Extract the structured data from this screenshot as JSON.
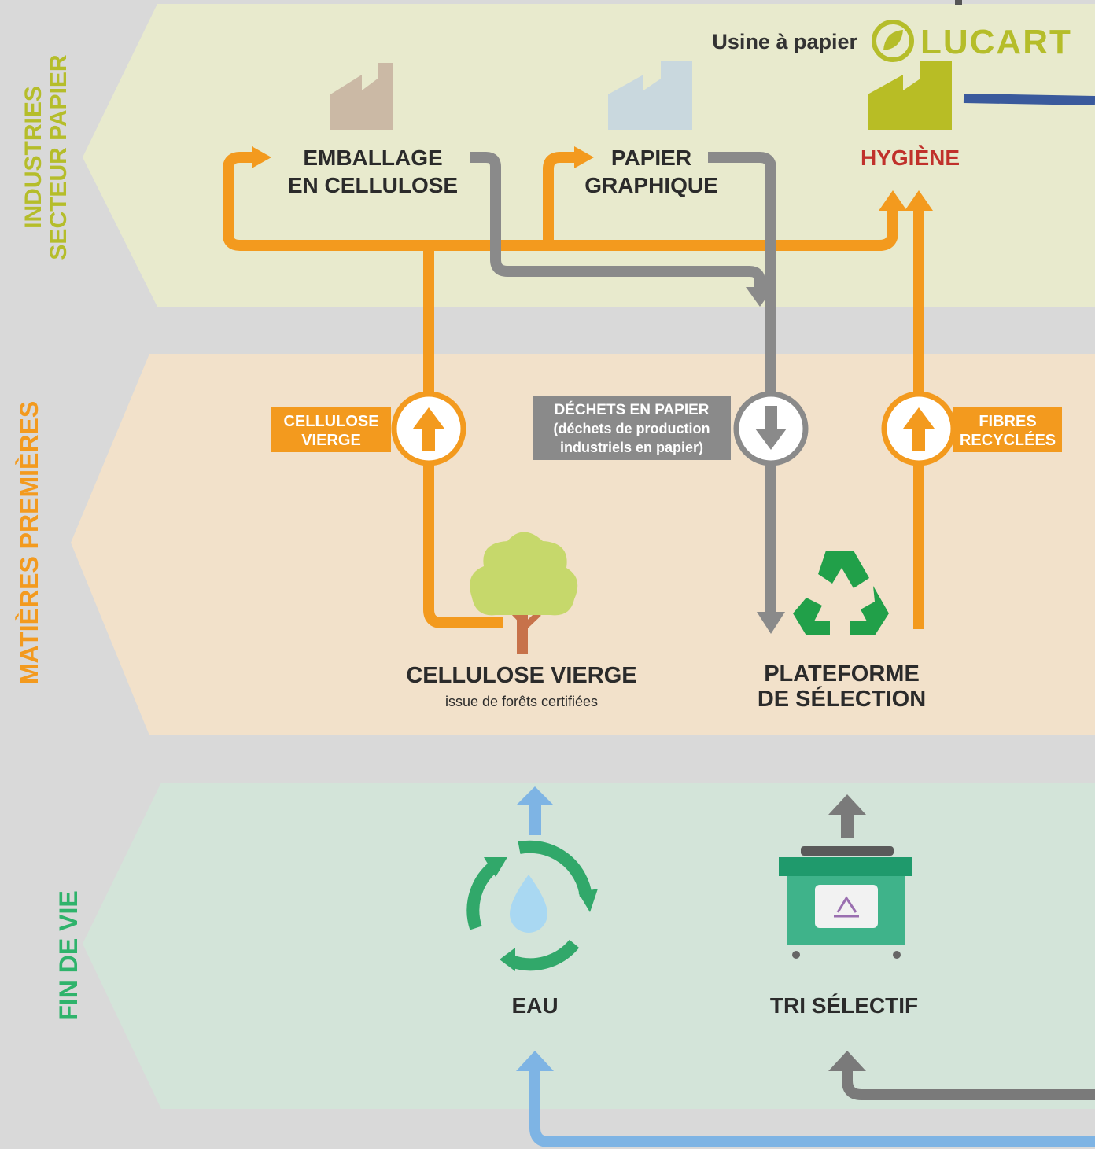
{
  "sections": {
    "industries": {
      "lines": [
        "INDUSTRIES",
        "SECTEUR PAPIER"
      ]
    },
    "matieres": {
      "label": "MATIÈRES PREMIÈRES"
    },
    "fin_de_vie": {
      "label": "FIN DE VIE"
    }
  },
  "header": {
    "title": "Usine à papier",
    "logo": "LUCART"
  },
  "nodes": {
    "emballage": {
      "lines": [
        "EMBALLAGE",
        "EN CELLULOSE"
      ]
    },
    "papier": {
      "lines": [
        "PAPIER",
        "GRAPHIQUE"
      ]
    },
    "hygiene": {
      "label": "HYGIÈNE"
    },
    "cellulose": {
      "label": "CELLULOSE VIERGE",
      "sub": "issue de forêts certifiées"
    },
    "plateforme": {
      "lines": [
        "PLATEFORME",
        "DE SÉLECTION"
      ]
    },
    "eau": {
      "label": "EAU"
    },
    "tri": {
      "label": "TRI SÉLECTIF"
    }
  },
  "flows": {
    "cellulose": {
      "lines": [
        "CELLULOSE",
        "VIERGE"
      ]
    },
    "dechets": {
      "lines": [
        "DÉCHETS EN PAPIER",
        "(déchets de production",
        "industriels en papier)"
      ]
    },
    "fibres": {
      "lines": [
        "FIBRES",
        "RECYCLÉES"
      ]
    }
  }
}
